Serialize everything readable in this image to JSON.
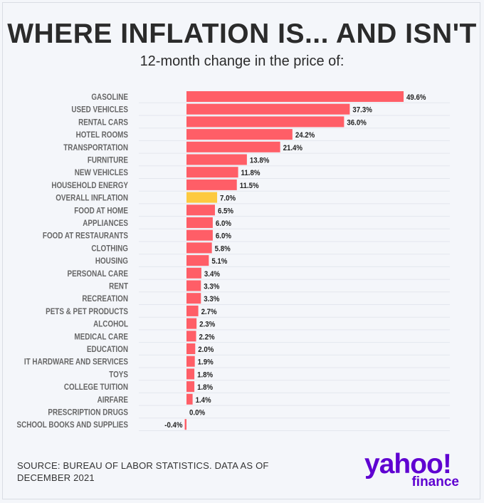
{
  "header": {
    "title": "WHERE INFLATION IS... AND ISN'T",
    "subtitle": "12-month change in the price of:"
  },
  "footer": {
    "source": "SOURCE: BUREAU OF LABOR STATISTICS. DATA AS OF DECEMBER 2021",
    "logo_main": "yahoo!",
    "logo_sub": "finance"
  },
  "colors": {
    "bar": "#ff5e67",
    "highlight": "#fdca40",
    "logo": "#5f01d1"
  },
  "chart_data": {
    "type": "bar",
    "orientation": "horizontal",
    "title": "WHERE INFLATION IS... AND ISN'T",
    "subtitle": "12-month change in the price of:",
    "highlight_category": "OVERALL INFLATION",
    "grid": true,
    "categories": [
      "GASOLINE",
      "USED VEHICLES",
      "RENTAL CARS",
      "HOTEL ROOMS",
      "TRANSPORTATION",
      "FURNITURE",
      "NEW VEHICLES",
      "HOUSEHOLD ENERGY",
      "OVERALL INFLATION",
      "FOOD AT HOME",
      "APPLIANCES",
      "FOOD AT RESTAURANTS",
      "CLOTHING",
      "HOUSING",
      "PERSONAL CARE",
      "RENT",
      "RECREATION",
      "PETS & PET PRODUCTS",
      "ALCOHOL",
      "MEDICAL CARE",
      "EDUCATION",
      "IT HARDWARE AND SERVICES",
      "TOYS",
      "COLLEGE TUITION",
      "AIRFARE",
      "PRESCRIPTION DRUGS",
      "SCHOOL BOOKS AND SUPPLIES"
    ],
    "values": [
      49.6,
      37.3,
      36.0,
      24.2,
      21.4,
      13.8,
      11.8,
      11.5,
      7.0,
      6.5,
      6.0,
      6.0,
      5.8,
      5.1,
      3.4,
      3.3,
      3.3,
      2.7,
      2.3,
      2.2,
      2.0,
      1.9,
      1.8,
      1.8,
      1.4,
      0.0,
      -0.4
    ],
    "labels": [
      "49.6%",
      "37.3%",
      "36.0%",
      "24.2%",
      "21.4%",
      "13.8%",
      "11.8%",
      "11.5%",
      "7.0%",
      "6.5%",
      "6.0%",
      "6.0%",
      "5.8%",
      "5.1%",
      "3.4%",
      "3.3%",
      "3.3%",
      "2.7%",
      "2.3%",
      "2.2%",
      "2.0%",
      "1.9%",
      "1.8%",
      "1.8%",
      "1.4%",
      "0.0%",
      "-0.4%"
    ]
  }
}
